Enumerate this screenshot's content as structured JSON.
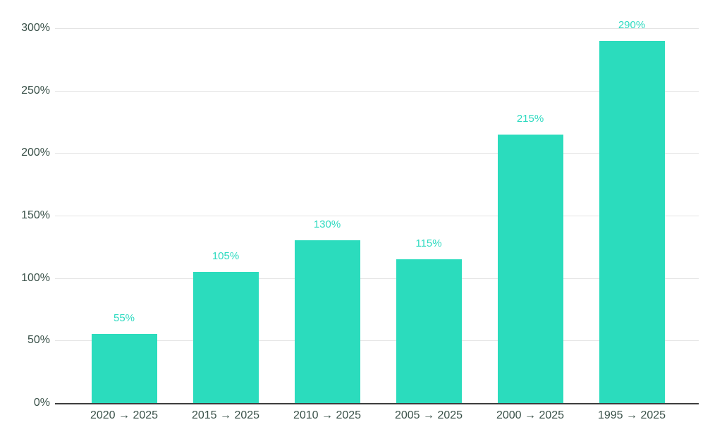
{
  "chart_data": {
    "type": "bar",
    "title": "",
    "xlabel": "",
    "ylabel": "",
    "categories": [
      "2020 → 2025",
      "2015 → 2025",
      "2010 → 2025",
      "2005 → 2025",
      "2000 → 2025",
      "1995 → 2025"
    ],
    "values": [
      55,
      105,
      130,
      115,
      215,
      290
    ],
    "value_labels": [
      "55%",
      "105%",
      "130%",
      "115%",
      "215%",
      "290%"
    ],
    "ylim": [
      0,
      300
    ],
    "y_ticks": [
      {
        "value": 0,
        "label": "0%"
      },
      {
        "value": 50,
        "label": "50%"
      },
      {
        "value": 100,
        "label": "100%"
      },
      {
        "value": 150,
        "label": "150%"
      },
      {
        "value": 200,
        "label": "200%"
      },
      {
        "value": 250,
        "label": "250%"
      },
      {
        "value": 300,
        "label": "300%"
      }
    ],
    "grid": "horizontal",
    "legend_position": "none",
    "colors": {
      "bar": "#2BDCBD",
      "value_label": "#2EDAC0",
      "axis_text": "#3A5149",
      "gridline": "#E4E4E4",
      "axis_line": "#3D3D3D",
      "background": "#FFFFFF"
    }
  }
}
